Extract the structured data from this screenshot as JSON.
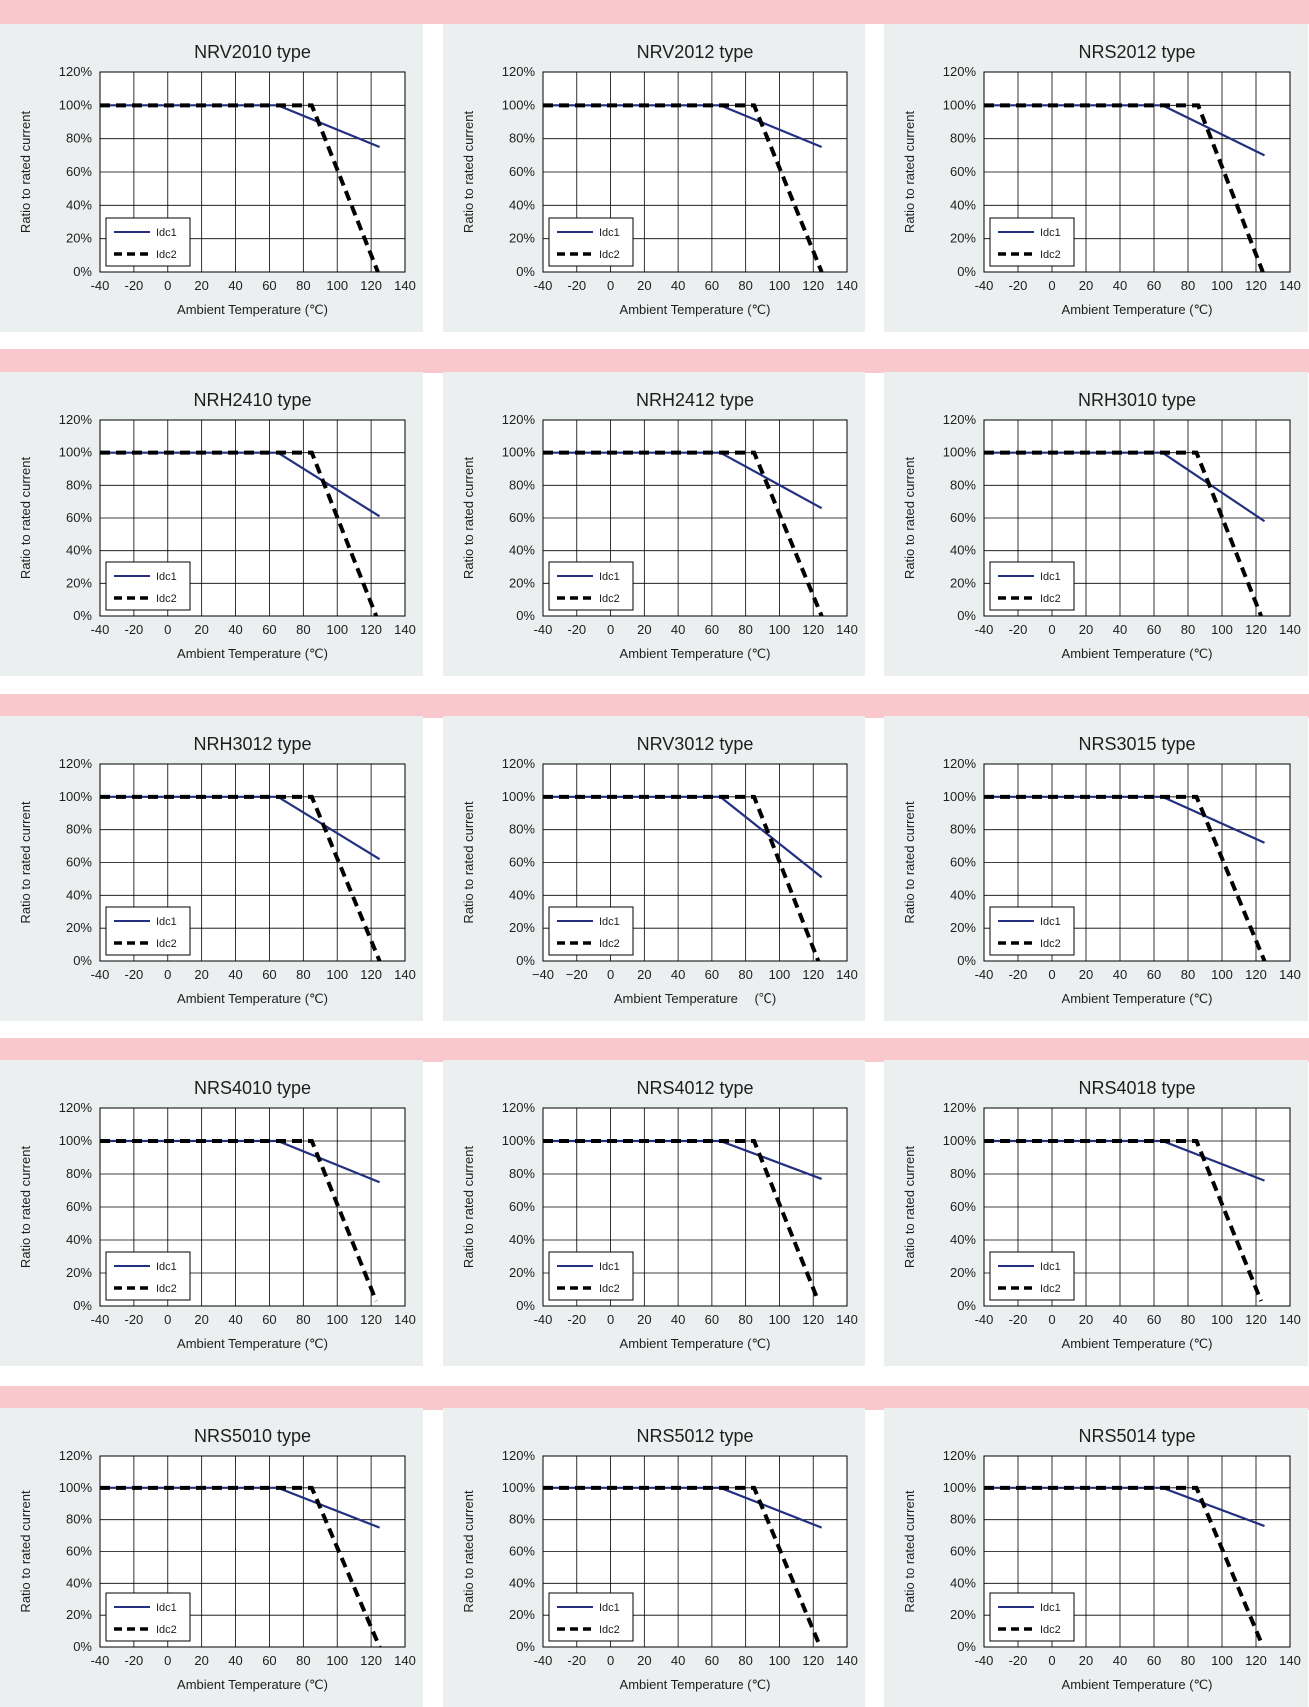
{
  "colors": {
    "band": "#f9c8cc",
    "panel_background": "#ebefef",
    "plot_background": "#ffffff",
    "grid": "#000000",
    "idc1_line": "#233080",
    "idc2_line": "#000000"
  },
  "chart_data": [
    {
      "type": "line",
      "title": "NRV2010  type",
      "xlabel": "Ambient Temperature (℃)",
      "ylabel": "Ratio to rated current",
      "xlim": [
        -40,
        140
      ],
      "ylim": [
        0,
        120
      ],
      "xticks": [
        "-40",
        "-20",
        "0",
        "20",
        "40",
        "60",
        "80",
        "100",
        "120",
        "140"
      ],
      "yticks": [
        "0%",
        "20%",
        "40%",
        "60%",
        "80%",
        "100%",
        "120%"
      ],
      "grid": true,
      "legend": "bottom-left",
      "series": [
        {
          "name": "Idc1",
          "style": "solid",
          "x": [
            -40,
            65,
            125
          ],
          "y": [
            100,
            100,
            75
          ]
        },
        {
          "name": "Idc2",
          "style": "dashed",
          "x": [
            -40,
            85,
            124
          ],
          "y": [
            100,
            100,
            0
          ]
        }
      ]
    },
    {
      "type": "line",
      "title": "NRV2012 type",
      "xlabel": "Ambient Temperature (℃)",
      "ylabel": "Ratio to rated current",
      "xlim": [
        -40,
        140
      ],
      "ylim": [
        0,
        120
      ],
      "xticks": [
        "-40",
        "-20",
        "0",
        "20",
        "40",
        "60",
        "80",
        "100",
        "120",
        "140"
      ],
      "yticks": [
        "0%",
        "20%",
        "40%",
        "60%",
        "80%",
        "100%",
        "120%"
      ],
      "grid": true,
      "legend": "bottom-left",
      "series": [
        {
          "name": "Idc1",
          "style": "solid",
          "x": [
            -40,
            65,
            125
          ],
          "y": [
            100,
            100,
            75
          ]
        },
        {
          "name": "Idc2",
          "style": "dashed",
          "x": [
            -40,
            85,
            125
          ],
          "y": [
            100,
            100,
            0
          ]
        }
      ]
    },
    {
      "type": "line",
      "title": "NRS2012 type",
      "xlabel": "Ambient Temperature (℃)",
      "ylabel": "Ratio to rated current",
      "xlim": [
        -40,
        140
      ],
      "ylim": [
        0,
        120
      ],
      "xticks": [
        "-40",
        "-20",
        "0",
        "20",
        "40",
        "60",
        "80",
        "100",
        "120",
        "140"
      ],
      "yticks": [
        "0%",
        "20%",
        "40%",
        "60%",
        "80%",
        "100%",
        "120%"
      ],
      "grid": true,
      "legend": "bottom-left",
      "series": [
        {
          "name": "Idc1",
          "style": "solid",
          "x": [
            -40,
            65,
            125
          ],
          "y": [
            100,
            100,
            70
          ]
        },
        {
          "name": "Idc2",
          "style": "dashed",
          "x": [
            -40,
            86,
            124
          ],
          "y": [
            100,
            100,
            0
          ]
        }
      ]
    },
    {
      "type": "line",
      "title": "NRH2410 type",
      "xlabel": "Ambient Temperature (℃)",
      "ylabel": "Ratio to rated current",
      "xlim": [
        -40,
        140
      ],
      "ylim": [
        0,
        120
      ],
      "xticks": [
        "-40",
        "-20",
        "0",
        "20",
        "40",
        "60",
        "80",
        "100",
        "120",
        "140"
      ],
      "yticks": [
        "0%",
        "20%",
        "40%",
        "60%",
        "80%",
        "100%",
        "120%"
      ],
      "grid": true,
      "legend": "bottom-left",
      "series": [
        {
          "name": "Idc1",
          "style": "solid",
          "x": [
            -40,
            65,
            125
          ],
          "y": [
            100,
            100,
            61
          ]
        },
        {
          "name": "Idc2",
          "style": "dashed",
          "x": [
            -40,
            85,
            123
          ],
          "y": [
            100,
            100,
            0
          ]
        }
      ]
    },
    {
      "type": "line",
      "title": "NRH2412 type",
      "xlabel": "Ambient Temperature (℃)",
      "ylabel": "Ratio to rated current",
      "xlim": [
        -40,
        140
      ],
      "ylim": [
        0,
        120
      ],
      "xticks": [
        "-40",
        "-20",
        "0",
        "20",
        "40",
        "60",
        "80",
        "100",
        "120",
        "140"
      ],
      "yticks": [
        "0%",
        "20%",
        "40%",
        "60%",
        "80%",
        "100%",
        "120%"
      ],
      "grid": true,
      "legend": "bottom-left",
      "series": [
        {
          "name": "Idc1",
          "style": "solid",
          "x": [
            -40,
            65,
            125
          ],
          "y": [
            100,
            100,
            66
          ]
        },
        {
          "name": "Idc2",
          "style": "dashed",
          "x": [
            -40,
            85,
            125
          ],
          "y": [
            100,
            100,
            0
          ]
        }
      ]
    },
    {
      "type": "line",
      "title": "NRH3010 type",
      "xlabel": "Ambient Temperature (℃)",
      "ylabel": "Ratio to rated current",
      "xlim": [
        -40,
        140
      ],
      "ylim": [
        0,
        120
      ],
      "xticks": [
        "-40",
        "-20",
        "0",
        "20",
        "40",
        "60",
        "80",
        "100",
        "120",
        "140"
      ],
      "yticks": [
        "0%",
        "20%",
        "40%",
        "60%",
        "80%",
        "100%",
        "120%"
      ],
      "grid": true,
      "legend": "bottom-left",
      "series": [
        {
          "name": "Idc1",
          "style": "solid",
          "x": [
            -40,
            65,
            125
          ],
          "y": [
            100,
            100,
            58
          ]
        },
        {
          "name": "Idc2",
          "style": "dashed",
          "x": [
            -40,
            85,
            123
          ],
          "y": [
            100,
            100,
            0
          ]
        }
      ]
    },
    {
      "type": "line",
      "title": "NRH3012 type",
      "xlabel": "Ambient Temperature (℃)",
      "ylabel": "Ratio to rated current",
      "xlim": [
        -40,
        140
      ],
      "ylim": [
        0,
        120
      ],
      "xticks": [
        "-40",
        "-20",
        "0",
        "20",
        "40",
        "60",
        "80",
        "100",
        "120",
        "140"
      ],
      "yticks": [
        "0%",
        "20%",
        "40%",
        "60%",
        "80%",
        "100%",
        "120%"
      ],
      "grid": true,
      "legend": "bottom-left",
      "series": [
        {
          "name": "Idc1",
          "style": "solid",
          "x": [
            -40,
            65,
            125
          ],
          "y": [
            100,
            100,
            62
          ]
        },
        {
          "name": "Idc2",
          "style": "dashed",
          "x": [
            -40,
            85,
            125
          ],
          "y": [
            100,
            100,
            0
          ]
        }
      ]
    },
    {
      "type": "line",
      "title": "NRV3012 type",
      "xlabel": "Ambient Temperature　 (℃)",
      "ylabel": "Ratio to rated current",
      "xlim": [
        -40,
        140
      ],
      "ylim": [
        0,
        120
      ],
      "xticks": [
        "−40",
        "−20",
        "0",
        "20",
        "40",
        "60",
        "80",
        "100",
        "120",
        "140"
      ],
      "yticks": [
        "0%",
        "20%",
        "40%",
        "60%",
        "80%",
        "100%",
        "120%"
      ],
      "grid": true,
      "legend": "bottom-left",
      "series": [
        {
          "name": "Idc1",
          "style": "solid",
          "x": [
            -40,
            65,
            125
          ],
          "y": [
            100,
            100,
            51
          ]
        },
        {
          "name": "Idc2",
          "style": "dashed",
          "x": [
            -40,
            85,
            123
          ],
          "y": [
            100,
            100,
            0
          ]
        }
      ]
    },
    {
      "type": "line",
      "title": "NRS3015 type",
      "xlabel": "Ambient Temperature (℃)",
      "ylabel": "Ratio to rated current",
      "xlim": [
        -40,
        140
      ],
      "ylim": [
        0,
        120
      ],
      "xticks": [
        "-40",
        "-20",
        "0",
        "20",
        "40",
        "60",
        "80",
        "100",
        "120",
        "140"
      ],
      "yticks": [
        "0%",
        "20%",
        "40%",
        "60%",
        "80%",
        "100%",
        "120%"
      ],
      "grid": true,
      "legend": "bottom-left",
      "series": [
        {
          "name": "Idc1",
          "style": "solid",
          "x": [
            -40,
            65,
            125
          ],
          "y": [
            100,
            100,
            72
          ]
        },
        {
          "name": "Idc2",
          "style": "dashed",
          "x": [
            -40,
            85,
            125
          ],
          "y": [
            100,
            100,
            0
          ]
        }
      ]
    },
    {
      "type": "line",
      "title": "NRS4010 type",
      "xlabel": "Ambient Temperature (℃)",
      "ylabel": "Ratio to rated current",
      "xlim": [
        -40,
        140
      ],
      "ylim": [
        0,
        120
      ],
      "xticks": [
        "-40",
        "-20",
        "0",
        "20",
        "40",
        "60",
        "80",
        "100",
        "120",
        "140"
      ],
      "yticks": [
        "0%",
        "20%",
        "40%",
        "60%",
        "80%",
        "100%",
        "120%"
      ],
      "grid": true,
      "legend": "bottom-left",
      "series": [
        {
          "name": "Idc1",
          "style": "solid",
          "x": [
            -40,
            65,
            125
          ],
          "y": [
            100,
            100,
            75
          ]
        },
        {
          "name": "Idc2",
          "style": "dashed",
          "x": [
            -40,
            85,
            123
          ],
          "y": [
            100,
            100,
            3
          ]
        }
      ]
    },
    {
      "type": "line",
      "title": "NRS4012 type",
      "xlabel": "Ambient Temperature (℃)",
      "ylabel": "Ratio to rated current",
      "xlim": [
        -40,
        140
      ],
      "ylim": [
        0,
        120
      ],
      "xticks": [
        "-40",
        "-20",
        "0",
        "20",
        "40",
        "60",
        "80",
        "100",
        "120",
        "140"
      ],
      "yticks": [
        "0%",
        "20%",
        "40%",
        "60%",
        "80%",
        "100%",
        "120%"
      ],
      "grid": true,
      "legend": "bottom-left",
      "series": [
        {
          "name": "Idc1",
          "style": "solid",
          "x": [
            -40,
            65,
            125
          ],
          "y": [
            100,
            100,
            77
          ]
        },
        {
          "name": "Idc2",
          "style": "dashed",
          "x": [
            -40,
            85,
            123
          ],
          "y": [
            100,
            100,
            3
          ]
        }
      ]
    },
    {
      "type": "line",
      "title": "NRS4018 type",
      "xlabel": "Ambient Temperature (℃)",
      "ylabel": "Ratio to rated current",
      "xlim": [
        -40,
        140
      ],
      "ylim": [
        0,
        120
      ],
      "xticks": [
        "-40",
        "-20",
        "0",
        "20",
        "40",
        "60",
        "80",
        "100",
        "120",
        "140"
      ],
      "yticks": [
        "0%",
        "20%",
        "40%",
        "60%",
        "80%",
        "100%",
        "120%"
      ],
      "grid": true,
      "legend": "bottom-left",
      "series": [
        {
          "name": "Idc1",
          "style": "solid",
          "x": [
            -40,
            65,
            125
          ],
          "y": [
            100,
            100,
            76
          ]
        },
        {
          "name": "Idc2",
          "style": "dashed",
          "x": [
            -40,
            85,
            123
          ],
          "y": [
            100,
            100,
            3
          ]
        }
      ]
    },
    {
      "type": "line",
      "title": "NRS5010 type",
      "xlabel": "Ambient Temperature (℃)",
      "ylabel": "Ratio to rated current",
      "xlim": [
        -40,
        140
      ],
      "ylim": [
        0,
        120
      ],
      "xticks": [
        "-40",
        "-20",
        "0",
        "20",
        "40",
        "60",
        "80",
        "100",
        "120",
        "140"
      ],
      "yticks": [
        "0%",
        "20%",
        "40%",
        "60%",
        "80%",
        "100%",
        "120%"
      ],
      "grid": true,
      "legend": "bottom-left",
      "series": [
        {
          "name": "Idc1",
          "style": "solid",
          "x": [
            -40,
            65,
            125
          ],
          "y": [
            100,
            100,
            75
          ]
        },
        {
          "name": "Idc2",
          "style": "dashed",
          "x": [
            -40,
            85,
            125
          ],
          "y": [
            100,
            100,
            0
          ]
        }
      ]
    },
    {
      "type": "line",
      "title": "NRS5012 type",
      "xlabel": "Ambient Temperature (℃)",
      "ylabel": "Ratio to rated current",
      "xlim": [
        -40,
        140
      ],
      "ylim": [
        0,
        120
      ],
      "xticks": [
        "-40",
        "-20",
        "0",
        "20",
        "40",
        "60",
        "80",
        "100",
        "120",
        "140"
      ],
      "yticks": [
        "0%",
        "20%",
        "40%",
        "60%",
        "80%",
        "100%",
        "120%"
      ],
      "grid": true,
      "legend": "bottom-left",
      "series": [
        {
          "name": "Idc1",
          "style": "solid",
          "x": [
            -40,
            65,
            125
          ],
          "y": [
            100,
            100,
            75
          ]
        },
        {
          "name": "Idc2",
          "style": "dashed",
          "x": [
            -40,
            85,
            123
          ],
          "y": [
            100,
            100,
            3
          ]
        }
      ]
    },
    {
      "type": "line",
      "title": "NRS5014 type",
      "xlabel": "Ambient Temperature (℃)",
      "ylabel": "Ratio to rated current",
      "xlim": [
        -40,
        140
      ],
      "ylim": [
        0,
        120
      ],
      "xticks": [
        "-40",
        "-20",
        "0",
        "20",
        "40",
        "60",
        "80",
        "100",
        "120",
        "140"
      ],
      "yticks": [
        "0%",
        "20%",
        "40%",
        "60%",
        "80%",
        "100%",
        "120%"
      ],
      "grid": true,
      "legend": "bottom-left",
      "series": [
        {
          "name": "Idc1",
          "style": "solid",
          "x": [
            -40,
            65,
            125
          ],
          "y": [
            100,
            100,
            76
          ]
        },
        {
          "name": "Idc2",
          "style": "dashed",
          "x": [
            -40,
            85,
            123
          ],
          "y": [
            100,
            100,
            3
          ]
        }
      ]
    }
  ]
}
